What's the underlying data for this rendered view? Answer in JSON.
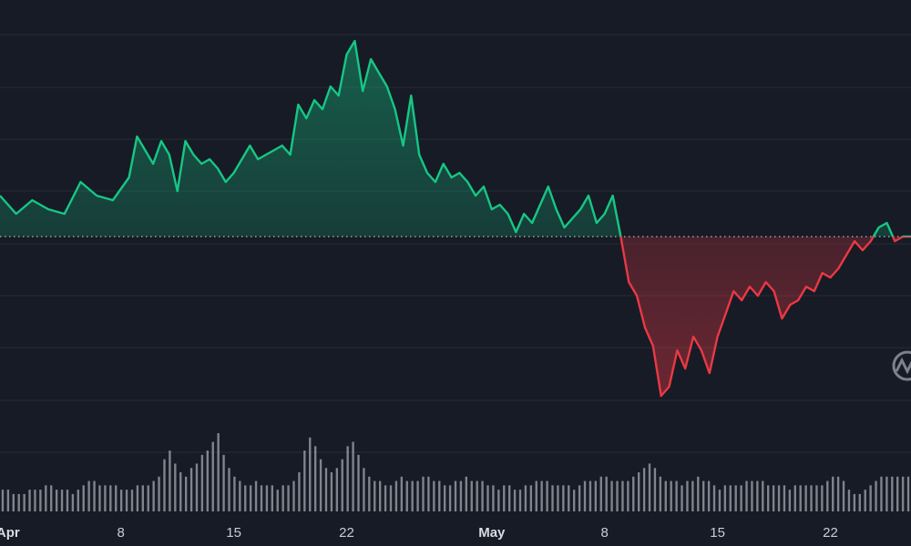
{
  "chart_data": {
    "type": "area",
    "title": "",
    "xlabel": "",
    "ylabel": "",
    "x_ticks": [
      {
        "label": "Apr",
        "day": 0,
        "month": true
      },
      {
        "label": "8",
        "day": 7
      },
      {
        "label": "15",
        "day": 14
      },
      {
        "label": "22",
        "day": 21
      },
      {
        "label": "May",
        "day": 30,
        "month": true
      },
      {
        "label": "8",
        "day": 37
      },
      {
        "label": "15",
        "day": 44
      },
      {
        "label": "22",
        "day": 51
      }
    ],
    "x_range": [
      -0.5,
      56
    ],
    "y_range": [
      -42,
      48
    ],
    "baseline": 0,
    "series": [
      {
        "values": [
          [
            -0.5,
            9
          ],
          [
            0.5,
            5
          ],
          [
            1.5,
            8
          ],
          [
            2.5,
            6
          ],
          [
            3.5,
            5
          ],
          [
            4.5,
            12
          ],
          [
            5.5,
            9
          ],
          [
            6.5,
            8
          ],
          [
            7.5,
            13
          ],
          [
            8,
            22
          ],
          [
            8.5,
            19
          ],
          [
            9,
            16
          ],
          [
            9.5,
            21
          ],
          [
            10,
            18
          ],
          [
            10.5,
            10
          ],
          [
            11,
            21
          ],
          [
            11.5,
            18
          ],
          [
            12,
            16
          ],
          [
            12.5,
            17
          ],
          [
            13,
            15
          ],
          [
            13.5,
            12
          ],
          [
            14,
            14
          ],
          [
            14.5,
            17
          ],
          [
            15,
            20
          ],
          [
            15.5,
            17
          ],
          [
            16,
            18
          ],
          [
            16.5,
            19
          ],
          [
            17,
            20
          ],
          [
            17.5,
            18
          ],
          [
            18,
            29
          ],
          [
            18.5,
            26
          ],
          [
            19,
            30
          ],
          [
            19.5,
            28
          ],
          [
            20,
            33
          ],
          [
            20.5,
            31
          ],
          [
            21,
            40
          ],
          [
            21.5,
            43
          ],
          [
            22,
            32
          ],
          [
            22.5,
            39
          ],
          [
            23,
            36
          ],
          [
            23.5,
            33
          ],
          [
            24,
            28
          ],
          [
            24.5,
            20
          ],
          [
            25,
            31
          ],
          [
            25.5,
            18
          ],
          [
            26,
            14
          ],
          [
            26.5,
            12
          ],
          [
            27,
            16
          ],
          [
            27.5,
            13
          ],
          [
            28,
            14
          ],
          [
            28.5,
            12
          ],
          [
            29,
            9
          ],
          [
            29.5,
            11
          ],
          [
            30,
            6
          ],
          [
            30.5,
            7
          ],
          [
            31,
            5
          ],
          [
            31.5,
            1
          ],
          [
            32,
            5
          ],
          [
            32.5,
            3
          ],
          [
            33,
            7
          ],
          [
            33.5,
            11
          ],
          [
            34,
            6
          ],
          [
            34.5,
            2
          ],
          [
            35,
            4
          ],
          [
            35.5,
            6
          ],
          [
            36,
            9
          ],
          [
            36.5,
            3
          ],
          [
            37,
            5
          ],
          [
            37.5,
            9
          ],
          [
            38,
            0
          ],
          [
            38.5,
            -10
          ],
          [
            39,
            -13
          ],
          [
            39.5,
            -20
          ],
          [
            40,
            -24
          ],
          [
            40.5,
            -35
          ],
          [
            41,
            -33
          ],
          [
            41.5,
            -25
          ],
          [
            42,
            -29
          ],
          [
            42.5,
            -22
          ],
          [
            43,
            -25
          ],
          [
            43.5,
            -30
          ],
          [
            44,
            -22
          ],
          [
            44.5,
            -17
          ],
          [
            45,
            -12
          ],
          [
            45.5,
            -14
          ],
          [
            46,
            -11
          ],
          [
            46.5,
            -13
          ],
          [
            47,
            -10
          ],
          [
            47.5,
            -12
          ],
          [
            48,
            -18
          ],
          [
            48.5,
            -15
          ],
          [
            49,
            -14
          ],
          [
            49.5,
            -11
          ],
          [
            50,
            -12
          ],
          [
            50.5,
            -8
          ],
          [
            51,
            -9
          ],
          [
            51.5,
            -7
          ],
          [
            52,
            -4
          ],
          [
            52.5,
            -1
          ],
          [
            53,
            -3
          ],
          [
            53.5,
            -1
          ],
          [
            54,
            2
          ],
          [
            54.5,
            3
          ],
          [
            55,
            -1
          ],
          [
            55.5,
            0
          ],
          [
            56,
            0
          ]
        ]
      }
    ],
    "volume": [
      5,
      5,
      4,
      4,
      4,
      5,
      5,
      5,
      6,
      6,
      5,
      5,
      5,
      4,
      5,
      6,
      7,
      7,
      6,
      6,
      6,
      6,
      5,
      5,
      5,
      6,
      6,
      6,
      7,
      8,
      12,
      14,
      11,
      9,
      8,
      10,
      11,
      13,
      14,
      16,
      18,
      13,
      10,
      8,
      7,
      6,
      6,
      7,
      6,
      6,
      6,
      5,
      6,
      6,
      7,
      9,
      14,
      17,
      15,
      12,
      10,
      9,
      10,
      12,
      15,
      16,
      13,
      10,
      8,
      7,
      7,
      6,
      6,
      7,
      8,
      7,
      7,
      7,
      8,
      8,
      7,
      7,
      6,
      6,
      7,
      7,
      8,
      7,
      7,
      7,
      6,
      6,
      5,
      6,
      6,
      5,
      5,
      6,
      6,
      7,
      7,
      7,
      6,
      6,
      6,
      6,
      5,
      6,
      7,
      7,
      7,
      8,
      8,
      7,
      7,
      7,
      7,
      8,
      9,
      10,
      11,
      10,
      8,
      7,
      7,
      7,
      6,
      7,
      7,
      8,
      7,
      7,
      6,
      5,
      6,
      6,
      6,
      6,
      7,
      7,
      7,
      7,
      6,
      6,
      6,
      6,
      5,
      6,
      6,
      6,
      6,
      6,
      6,
      7,
      8,
      8,
      7,
      5,
      4,
      4,
      5,
      6,
      7,
      8,
      8,
      8,
      8,
      8,
      8
    ]
  }
}
